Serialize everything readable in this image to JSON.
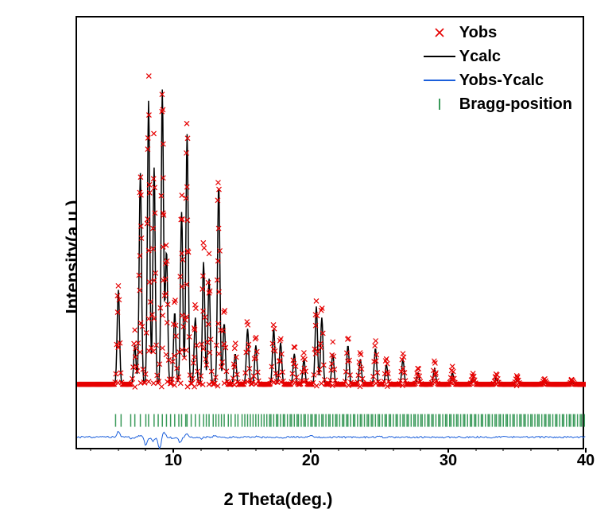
{
  "chart": {
    "type": "xrd-rietveld",
    "xlabel": "2 Theta(deg.)",
    "ylabel": "Intensity(a.u.)",
    "xlim": [
      3,
      40
    ],
    "ylim": [
      -80,
      700
    ],
    "xticks": [
      10,
      20,
      30,
      40
    ],
    "xtick_minor_step": 2,
    "background_color": "#ffffff",
    "axis_color": "#000000",
    "label_fontsize": 22,
    "tick_fontsize": 20,
    "legend_fontsize": 20,
    "font_weight": "bold",
    "legend": {
      "position": "top-right",
      "items": [
        {
          "symbol": "x",
          "color": "#e60000",
          "label": "Yobs"
        },
        {
          "symbol": "line",
          "color": "#000000",
          "label": "Ycalc"
        },
        {
          "symbol": "line",
          "color": "#1b5fdb",
          "label": "Yobs-Ycalc"
        },
        {
          "symbol": "tick",
          "color": "#3a9a5a",
          "label": "Bragg-position"
        }
      ]
    },
    "series": {
      "yobs": {
        "color": "#e60000",
        "marker": "x",
        "marker_size": 6,
        "baseline": 40,
        "peaks": [
          {
            "x": 6.0,
            "y": 230
          },
          {
            "x": 7.2,
            "y": 130
          },
          {
            "x": 7.6,
            "y": 440
          },
          {
            "x": 8.2,
            "y": 580
          },
          {
            "x": 8.6,
            "y": 470
          },
          {
            "x": 9.2,
            "y": 590
          },
          {
            "x": 9.5,
            "y": 310
          },
          {
            "x": 10.1,
            "y": 200
          },
          {
            "x": 10.6,
            "y": 400
          },
          {
            "x": 11.0,
            "y": 520
          },
          {
            "x": 11.6,
            "y": 190
          },
          {
            "x": 12.2,
            "y": 300
          },
          {
            "x": 12.6,
            "y": 260
          },
          {
            "x": 13.3,
            "y": 430
          },
          {
            "x": 13.7,
            "y": 180
          },
          {
            "x": 14.5,
            "y": 110
          },
          {
            "x": 15.4,
            "y": 160
          },
          {
            "x": 16.0,
            "y": 130
          },
          {
            "x": 17.3,
            "y": 160
          },
          {
            "x": 17.8,
            "y": 130
          },
          {
            "x": 18.8,
            "y": 110
          },
          {
            "x": 19.5,
            "y": 100
          },
          {
            "x": 20.4,
            "y": 200
          },
          {
            "x": 20.8,
            "y": 180
          },
          {
            "x": 21.6,
            "y": 110
          },
          {
            "x": 22.7,
            "y": 130
          },
          {
            "x": 23.6,
            "y": 100
          },
          {
            "x": 24.7,
            "y": 120
          },
          {
            "x": 25.5,
            "y": 90
          },
          {
            "x": 26.7,
            "y": 100
          },
          {
            "x": 27.8,
            "y": 70
          },
          {
            "x": 29.0,
            "y": 80
          },
          {
            "x": 30.3,
            "y": 70
          },
          {
            "x": 31.8,
            "y": 60
          },
          {
            "x": 33.5,
            "y": 60
          },
          {
            "x": 35.0,
            "y": 55
          },
          {
            "x": 37.0,
            "y": 50
          },
          {
            "x": 39.0,
            "y": 48
          }
        ]
      },
      "ycalc": {
        "color": "#000000",
        "line_width": 1.5,
        "baseline": 40,
        "peaks": [
          {
            "x": 6.0,
            "y": 210
          },
          {
            "x": 7.2,
            "y": 110
          },
          {
            "x": 7.6,
            "y": 420
          },
          {
            "x": 8.2,
            "y": 550
          },
          {
            "x": 8.6,
            "y": 430
          },
          {
            "x": 9.2,
            "y": 570
          },
          {
            "x": 9.5,
            "y": 280
          },
          {
            "x": 10.1,
            "y": 170
          },
          {
            "x": 10.6,
            "y": 350
          },
          {
            "x": 11.0,
            "y": 490
          },
          {
            "x": 11.6,
            "y": 160
          },
          {
            "x": 12.2,
            "y": 260
          },
          {
            "x": 12.6,
            "y": 230
          },
          {
            "x": 13.3,
            "y": 400
          },
          {
            "x": 13.7,
            "y": 150
          },
          {
            "x": 14.5,
            "y": 95
          },
          {
            "x": 15.4,
            "y": 140
          },
          {
            "x": 16.0,
            "y": 110
          },
          {
            "x": 17.3,
            "y": 140
          },
          {
            "x": 17.8,
            "y": 115
          },
          {
            "x": 18.8,
            "y": 95
          },
          {
            "x": 19.5,
            "y": 85
          },
          {
            "x": 20.4,
            "y": 180
          },
          {
            "x": 20.8,
            "y": 160
          },
          {
            "x": 21.6,
            "y": 95
          },
          {
            "x": 22.7,
            "y": 110
          },
          {
            "x": 23.6,
            "y": 85
          },
          {
            "x": 24.7,
            "y": 105
          },
          {
            "x": 25.5,
            "y": 75
          },
          {
            "x": 26.7,
            "y": 85
          },
          {
            "x": 27.8,
            "y": 60
          },
          {
            "x": 29.0,
            "y": 68
          },
          {
            "x": 30.3,
            "y": 60
          },
          {
            "x": 31.8,
            "y": 52
          },
          {
            "x": 33.5,
            "y": 52
          },
          {
            "x": 35.0,
            "y": 48
          },
          {
            "x": 37.0,
            "y": 45
          },
          {
            "x": 39.0,
            "y": 43
          }
        ]
      },
      "diff": {
        "color": "#1b5fdb",
        "line_width": 1,
        "baseline": -55,
        "peaks": [
          {
            "x": 6.0,
            "y": -45
          },
          {
            "x": 7.0,
            "y": -58
          },
          {
            "x": 7.6,
            "y": -52
          },
          {
            "x": 8.0,
            "y": -70
          },
          {
            "x": 8.5,
            "y": -62
          },
          {
            "x": 9.0,
            "y": -75
          },
          {
            "x": 9.3,
            "y": -45
          },
          {
            "x": 10.0,
            "y": -58
          },
          {
            "x": 10.5,
            "y": -65
          },
          {
            "x": 11.0,
            "y": -50
          },
          {
            "x": 12.0,
            "y": -58
          },
          {
            "x": 13.0,
            "y": -52
          },
          {
            "x": 14.0,
            "y": -56
          },
          {
            "x": 16.0,
            "y": -54
          },
          {
            "x": 18.0,
            "y": -56
          },
          {
            "x": 20.0,
            "y": -52
          },
          {
            "x": 22.0,
            "y": -55
          },
          {
            "x": 25.0,
            "y": -54
          },
          {
            "x": 28.0,
            "y": -55
          },
          {
            "x": 32.0,
            "y": -55
          },
          {
            "x": 36.0,
            "y": -55
          },
          {
            "x": 40.0,
            "y": -55
          }
        ]
      },
      "bragg": {
        "color": "#3a9a5a",
        "y_center": -25,
        "tick_height": 16,
        "positions": [
          5.8,
          6.2,
          6.9,
          7.2,
          7.6,
          8.0,
          8.2,
          8.6,
          8.9,
          9.2,
          9.5,
          9.8,
          10.1,
          10.4,
          10.6,
          10.9,
          11.0,
          11.3,
          11.6,
          11.9,
          12.2,
          12.4,
          12.6,
          12.9,
          13.1,
          13.3,
          13.5,
          13.7,
          14.0,
          14.2,
          14.5,
          14.7,
          15.0,
          15.2,
          15.4,
          15.6,
          15.8,
          16.0,
          16.2,
          16.4,
          16.6,
          16.8,
          17.0,
          17.1,
          17.3,
          17.5,
          17.6,
          17.8,
          18.0,
          18.1,
          18.3,
          18.5,
          18.6,
          18.8,
          19.0,
          19.1,
          19.3,
          19.5,
          19.6,
          19.8,
          20.0,
          20.1,
          20.3,
          20.4,
          20.6,
          20.8,
          20.9,
          21.1,
          21.3,
          21.4,
          21.6,
          21.8,
          21.9,
          22.1,
          22.3,
          22.4,
          22.6,
          22.7,
          22.9,
          23.1,
          23.2,
          23.4,
          23.6,
          23.7,
          23.9,
          24.1,
          24.2,
          24.4,
          24.5,
          24.7,
          24.9,
          25.0,
          25.2,
          25.4,
          25.5,
          25.7,
          25.8,
          26.0,
          26.2,
          26.3,
          26.5,
          26.7,
          26.8,
          27.0,
          27.1,
          27.3,
          27.5,
          27.6,
          27.8,
          28.0,
          28.1,
          28.3,
          28.5,
          28.6,
          28.8,
          28.9,
          29.1,
          29.3,
          29.4,
          29.6,
          29.8,
          29.9,
          30.1,
          30.2,
          30.4,
          30.6,
          30.7,
          30.9,
          31.1,
          31.2,
          31.4,
          31.6,
          31.7,
          31.9,
          32.0,
          32.2,
          32.4,
          32.5,
          32.7,
          32.9,
          33.0,
          33.2,
          33.4,
          33.5,
          33.7,
          33.8,
          34.0,
          34.2,
          34.3,
          34.5,
          34.7,
          34.8,
          35.0,
          35.2,
          35.3,
          35.5,
          35.6,
          35.8,
          36.0,
          36.1,
          36.3,
          36.5,
          36.6,
          36.8,
          37.0,
          37.1,
          37.3,
          37.4,
          37.6,
          37.8,
          37.9,
          38.1,
          38.3,
          38.4,
          38.6,
          38.8,
          38.9,
          39.1,
          39.2,
          39.4,
          39.6,
          39.7,
          39.9
        ]
      }
    }
  }
}
